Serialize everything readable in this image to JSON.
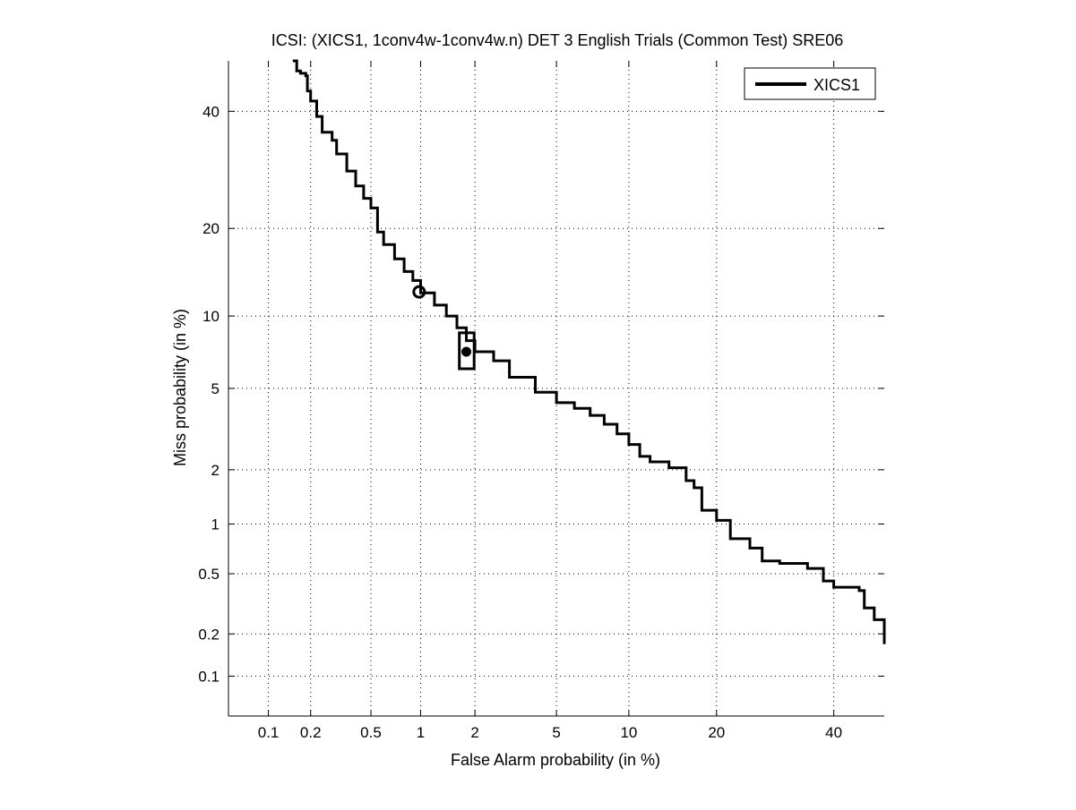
{
  "chart_data": {
    "type": "line",
    "title": "ICSI: (XICS1, 1conv4w-1conv4w.n) DET 3 English Trials (Common Test) SRE06",
    "xlabel": "False Alarm probability (in %)",
    "ylabel": "Miss probability (in %)",
    "scale": "normal-deviate (DET)",
    "xlim": [
      0.05,
      50
    ],
    "ylim": [
      0.05,
      50
    ],
    "grid": true,
    "legend_position": "top-right",
    "x_ticks": [
      0.1,
      0.2,
      0.5,
      1,
      2,
      5,
      10,
      20,
      40
    ],
    "x_tick_labels": [
      "0.1",
      "0.2",
      "0.5",
      "1",
      "2",
      "5",
      "10",
      "20",
      "40"
    ],
    "y_ticks": [
      0.1,
      0.2,
      0.5,
      1,
      2,
      5,
      10,
      20,
      40
    ],
    "y_tick_labels": [
      "0.1",
      "0.2",
      "0.5",
      "1",
      "2",
      "5",
      "10",
      "20",
      "40"
    ],
    "series": [
      {
        "name": "XICS1",
        "color": "#000000",
        "points": [
          [
            0.15,
            50
          ],
          [
            0.16,
            48
          ],
          [
            0.17,
            47.5
          ],
          [
            0.185,
            47
          ],
          [
            0.19,
            44
          ],
          [
            0.2,
            42
          ],
          [
            0.22,
            39
          ],
          [
            0.24,
            36
          ],
          [
            0.28,
            34.5
          ],
          [
            0.3,
            32
          ],
          [
            0.35,
            29
          ],
          [
            0.4,
            26.5
          ],
          [
            0.45,
            24.5
          ],
          [
            0.5,
            23
          ],
          [
            0.55,
            19.5
          ],
          [
            0.6,
            17.8
          ],
          [
            0.7,
            16
          ],
          [
            0.8,
            14.5
          ],
          [
            0.9,
            13.5
          ],
          [
            1.0,
            12.2
          ],
          [
            1.2,
            11
          ],
          [
            1.4,
            10
          ],
          [
            1.6,
            9
          ],
          [
            1.8,
            8
          ],
          [
            2.0,
            7.2
          ],
          [
            2.5,
            6.6
          ],
          [
            3.0,
            5.6
          ],
          [
            4.0,
            4.8
          ],
          [
            5.0,
            4.3
          ],
          [
            6.0,
            4.05
          ],
          [
            7.0,
            3.75
          ],
          [
            8.0,
            3.4
          ],
          [
            9.0,
            3.05
          ],
          [
            10.0,
            2.7
          ],
          [
            11.0,
            2.35
          ],
          [
            12.0,
            2.2
          ],
          [
            14.0,
            2.05
          ],
          [
            16.0,
            1.75
          ],
          [
            17.0,
            1.6
          ],
          [
            18.0,
            1.2
          ],
          [
            20.0,
            1.05
          ],
          [
            22.0,
            0.82
          ],
          [
            25.0,
            0.72
          ],
          [
            27.0,
            0.6
          ],
          [
            30.0,
            0.58
          ],
          [
            35.0,
            0.54
          ],
          [
            38.0,
            0.45
          ],
          [
            40.0,
            0.41
          ],
          [
            45.0,
            0.39
          ],
          [
            46.0,
            0.3
          ],
          [
            48.0,
            0.25
          ],
          [
            50.0,
            0.17
          ]
        ]
      }
    ],
    "markers": [
      {
        "name": "min-dcf-point",
        "shape": "circle",
        "x": 0.98,
        "y": 12.3
      },
      {
        "name": "actual-dcf-point",
        "shape": "filled-circle",
        "x": 1.8,
        "y": 7.2
      },
      {
        "name": "actual-dcf-box",
        "shape": "rectangle",
        "x_range": [
          1.65,
          1.98
        ],
        "y_range": [
          6.1,
          8.6
        ]
      }
    ]
  }
}
